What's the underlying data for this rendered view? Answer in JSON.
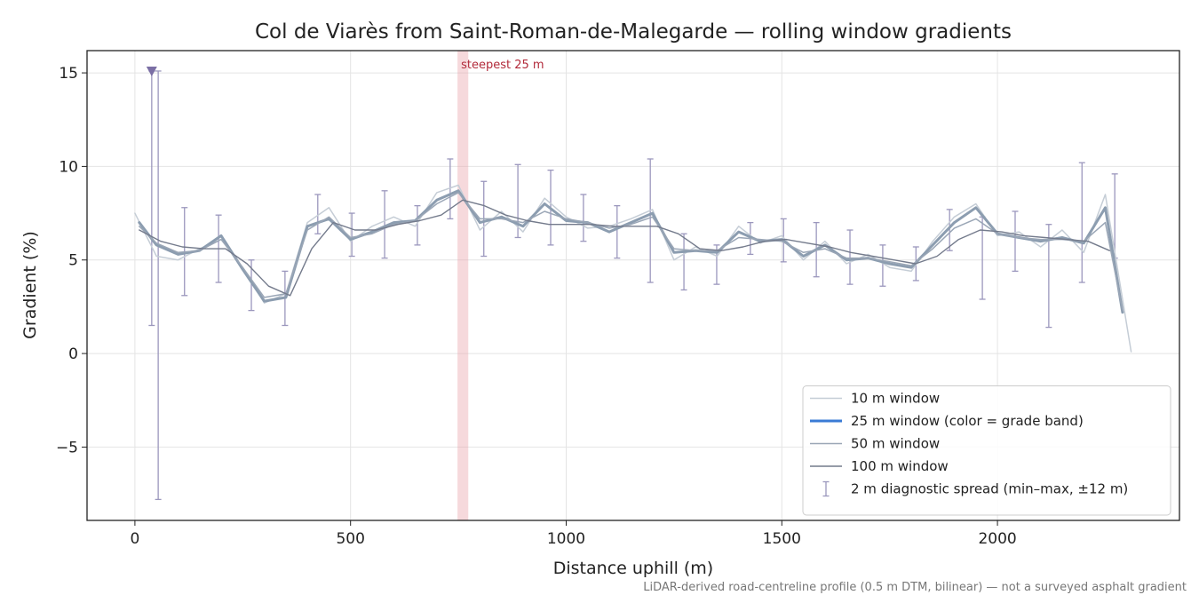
{
  "chart_data": {
    "type": "line",
    "title": "Col de Viarès from Saint-Roman-de-Malegarde — rolling window gradients",
    "xlabel": "Distance uphill (m)",
    "ylabel": "Gradient (%)",
    "footnote": "LiDAR-derived road-centreline profile (0.5 m DTM, bilinear) — not a surveyed asphalt gradient",
    "xlim": [
      -111,
      2422
    ],
    "ylim": [
      -8.92,
      16.19
    ],
    "xticks": [
      0,
      500,
      1000,
      1500,
      2000
    ],
    "yticks": [
      {
        "value": -5,
        "label": "−5"
      },
      0,
      5,
      10,
      15
    ],
    "grid": true,
    "legend": "lower right",
    "highlight": {
      "label": "steepest 25 m",
      "range": [
        748,
        773
      ],
      "color": "#e8a0a8"
    },
    "series": [
      {
        "name": "10 m window",
        "color": "#c5cdd6",
        "width": 1.5,
        "x": [
          0,
          50,
          100,
          150,
          200,
          250,
          300,
          350,
          400,
          450,
          500,
          550,
          600,
          650,
          700,
          750,
          800,
          850,
          900,
          950,
          1000,
          1050,
          1100,
          1150,
          1200,
          1250,
          1300,
          1350,
          1400,
          1450,
          1500,
          1550,
          1600,
          1650,
          1700,
          1750,
          1800,
          1850,
          1900,
          1950,
          2000,
          2050,
          2100,
          2150,
          2200,
          2250,
          2310
        ],
        "values": [
          7.5,
          5.2,
          5.0,
          5.6,
          6.1,
          4.6,
          2.7,
          3.2,
          7.0,
          7.8,
          6.0,
          6.8,
          7.3,
          6.8,
          8.6,
          9.0,
          6.6,
          7.6,
          6.5,
          8.3,
          7.3,
          6.7,
          6.8,
          7.2,
          7.7,
          5.0,
          5.7,
          5.2,
          6.8,
          5.9,
          6.3,
          5.0,
          6.0,
          4.8,
          5.3,
          4.6,
          4.4,
          6.0,
          7.3,
          8.0,
          6.3,
          6.5,
          5.7,
          6.6,
          5.4,
          8.5,
          0.1
        ]
      },
      {
        "name": "25 m window (color = grade band)",
        "color": "#8c9db0",
        "legend_color": "#3a7bd5",
        "width": 3,
        "x": [
          10,
          50,
          100,
          150,
          200,
          250,
          300,
          350,
          400,
          450,
          500,
          550,
          600,
          650,
          700,
          750,
          800,
          850,
          900,
          950,
          1000,
          1050,
          1100,
          1150,
          1200,
          1250,
          1300,
          1350,
          1400,
          1450,
          1500,
          1550,
          1600,
          1650,
          1700,
          1750,
          1800,
          1850,
          1900,
          1950,
          2000,
          2050,
          2100,
          2150,
          2200,
          2250,
          2290
        ],
        "values": [
          7.0,
          5.8,
          5.3,
          5.5,
          6.3,
          4.5,
          2.8,
          3.0,
          6.8,
          7.2,
          6.1,
          6.5,
          7.0,
          7.1,
          8.2,
          8.7,
          7.0,
          7.3,
          6.8,
          8.0,
          7.1,
          7.0,
          6.5,
          7.0,
          7.5,
          5.4,
          5.5,
          5.4,
          6.5,
          6.0,
          6.1,
          5.2,
          5.8,
          5.0,
          5.1,
          4.8,
          4.6,
          5.8,
          7.0,
          7.8,
          6.4,
          6.2,
          6.0,
          6.2,
          5.9,
          7.8,
          2.2
        ]
      },
      {
        "name": "50 m window",
        "color": "#9aa6b6",
        "width": 1.5,
        "x": [
          10,
          50,
          100,
          150,
          200,
          250,
          300,
          350,
          400,
          450,
          500,
          550,
          600,
          650,
          700,
          750,
          800,
          850,
          900,
          950,
          1000,
          1050,
          1100,
          1150,
          1200,
          1250,
          1300,
          1350,
          1400,
          1450,
          1500,
          1550,
          1600,
          1650,
          1700,
          1750,
          1800,
          1850,
          1900,
          1950,
          2000,
          2050,
          2100,
          2150,
          2200,
          2250,
          2290
        ],
        "values": [
          6.8,
          5.9,
          5.4,
          5.5,
          6.1,
          4.6,
          3.0,
          3.2,
          6.6,
          7.3,
          6.2,
          6.4,
          6.9,
          7.1,
          8.0,
          8.6,
          7.2,
          7.2,
          7.0,
          7.6,
          7.2,
          7.0,
          6.7,
          6.9,
          7.3,
          5.6,
          5.5,
          5.5,
          6.2,
          6.1,
          6.0,
          5.4,
          5.6,
          5.1,
          5.1,
          4.9,
          4.7,
          5.6,
          6.7,
          7.2,
          6.4,
          6.2,
          6.1,
          6.1,
          6.0,
          7.0,
          2.3
        ]
      },
      {
        "name": "100 m window",
        "color": "#747b8c",
        "width": 1.4,
        "x": [
          10,
          60,
          110,
          160,
          210,
          260,
          310,
          360,
          410,
          460,
          510,
          560,
          610,
          660,
          710,
          760,
          810,
          860,
          910,
          960,
          1010,
          1060,
          1110,
          1160,
          1210,
          1260,
          1310,
          1360,
          1410,
          1460,
          1510,
          1560,
          1610,
          1660,
          1710,
          1760,
          1810,
          1860,
          1910,
          1960,
          2010,
          2060,
          2110,
          2160,
          2210,
          2260
        ],
        "values": [
          6.6,
          6.0,
          5.7,
          5.6,
          5.6,
          4.8,
          3.6,
          3.1,
          5.6,
          7.0,
          6.6,
          6.6,
          6.9,
          7.1,
          7.4,
          8.2,
          7.9,
          7.4,
          7.1,
          6.9,
          6.9,
          6.9,
          6.8,
          6.8,
          6.8,
          6.4,
          5.6,
          5.5,
          5.7,
          6.0,
          6.1,
          5.9,
          5.7,
          5.4,
          5.2,
          5.0,
          4.8,
          5.2,
          6.1,
          6.6,
          6.5,
          6.3,
          6.2,
          6.1,
          6.0,
          5.5
        ]
      }
    ],
    "errorbars": {
      "name": "2 m diagnostic spread (min–max, ±12 m)",
      "color": "#9b97bd",
      "x": [
        39,
        54,
        115,
        194,
        270,
        348,
        424,
        503,
        579,
        655,
        731,
        809,
        888,
        964,
        1040,
        1118,
        1195,
        1273,
        1349,
        1427,
        1504,
        1580,
        1658,
        1734,
        1811,
        1889,
        1965,
        2041,
        2119,
        2196,
        2272
      ],
      "low": [
        1.5,
        -7.8,
        3.1,
        3.8,
        2.3,
        1.5,
        6.4,
        5.2,
        5.1,
        5.8,
        7.2,
        5.2,
        6.2,
        5.8,
        6.0,
        5.1,
        3.8,
        3.4,
        3.7,
        5.3,
        4.9,
        4.1,
        3.7,
        3.6,
        3.9,
        5.5,
        2.9,
        4.4,
        1.4,
        3.8,
        5.1
      ],
      "high": [
        15.1,
        15.1,
        7.8,
        7.4,
        5.0,
        4.4,
        8.5,
        7.5,
        8.7,
        7.9,
        10.4,
        9.2,
        10.1,
        9.8,
        8.5,
        7.9,
        10.4,
        6.4,
        5.8,
        7.0,
        7.2,
        7.0,
        6.6,
        5.8,
        5.7,
        7.7,
        7.3,
        7.6,
        6.9,
        10.2,
        9.6
      ]
    }
  }
}
